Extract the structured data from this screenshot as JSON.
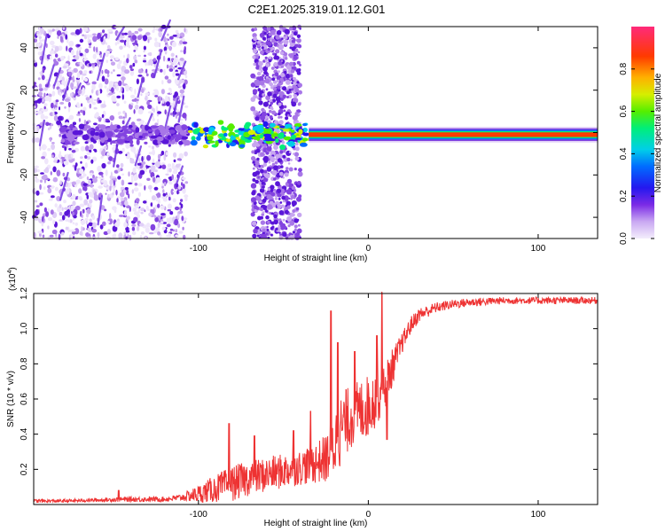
{
  "title": "C2E1.2025.319.01.12.G01",
  "colors": {
    "background": "#ffffff",
    "axis": "#000000",
    "snr_line": "#ee3333"
  },
  "chart_data": [
    {
      "type": "heatmap",
      "name": "spectrogram",
      "xlabel": "Height of straight line (km)",
      "ylabel": "Frequency (Hz)",
      "xlim": [
        -197,
        135
      ],
      "ylim": [
        -50,
        50
      ],
      "xticks": [
        -100,
        0,
        100
      ],
      "xtick_labels": [
        "-100",
        "0",
        "100"
      ],
      "yticks": [
        -40,
        -20,
        0,
        20,
        40
      ],
      "ytick_labels": [
        "-40",
        "-20",
        "0",
        "20",
        "40"
      ],
      "colorbar": {
        "label": "Normalized spectral amplitude",
        "range": [
          0,
          1
        ],
        "ticks": [
          0.0,
          0.2,
          0.4,
          0.6,
          0.8
        ],
        "tick_labels": [
          "0.0",
          "0.2",
          "0.4",
          "0.6",
          "0.8"
        ]
      },
      "features": [
        {
          "description": "scattered noise",
          "x_range": [
            -197,
            -107
          ],
          "freq_range": [
            -50,
            50
          ]
        },
        {
          "description": "noise band",
          "x_range": [
            -68,
            -40
          ],
          "freq_range": [
            -50,
            50
          ]
        },
        {
          "description": "carrier line",
          "x_range": [
            -197,
            135
          ],
          "freq_center": -1,
          "strength": "strong above -35 km"
        }
      ]
    },
    {
      "type": "line",
      "name": "snr",
      "xlabel": "Height of straight line (km)",
      "ylabel": "SNR (10 * v/v)",
      "y_multiplier": "(x10^4)",
      "xlim": [
        -197,
        135
      ],
      "ylim": [
        0,
        1.2
      ],
      "xticks": [
        -100,
        0,
        100
      ],
      "xtick_labels": [
        "-100",
        "0",
        "100"
      ],
      "yticks": [
        0.2,
        0.4,
        0.6,
        0.8,
        1.0,
        1.2
      ],
      "ytick_labels": [
        "0.2",
        "0.4",
        "0.6",
        "0.8",
        "1.0",
        "1.2"
      ],
      "series": [
        {
          "name": "SNR",
          "x": [
            -197,
            -180,
            -160,
            -140,
            -120,
            -110,
            -100,
            -90,
            -80,
            -70,
            -60,
            -50,
            -40,
            -30,
            -25,
            -20,
            -15,
            -10,
            -5,
            0,
            5,
            10,
            15,
            20,
            25,
            30,
            40,
            50,
            60,
            80,
            100,
            120,
            135
          ],
          "y": [
            0.02,
            0.02,
            0.025,
            0.03,
            0.03,
            0.04,
            0.06,
            0.09,
            0.12,
            0.15,
            0.17,
            0.19,
            0.21,
            0.24,
            0.26,
            0.34,
            0.45,
            0.5,
            0.53,
            0.56,
            0.61,
            0.68,
            0.8,
            0.92,
            1.02,
            1.08,
            1.12,
            1.14,
            1.15,
            1.16,
            1.16,
            1.16,
            1.16
          ],
          "noise_amp": [
            0.01,
            0.01,
            0.01,
            0.015,
            0.015,
            0.02,
            0.05,
            0.08,
            0.1,
            0.1,
            0.1,
            0.1,
            0.1,
            0.12,
            0.14,
            0.2,
            0.2,
            0.18,
            0.18,
            0.18,
            0.16,
            0.14,
            0.1,
            0.06,
            0.05,
            0.04,
            0.03,
            0.025,
            0.025,
            0.02,
            0.02,
            0.02,
            0.02
          ],
          "peaks": [
            {
              "x": -147,
              "y": 0.08
            },
            {
              "x": -82,
              "y": 0.46
            },
            {
              "x": -67,
              "y": 0.39
            },
            {
              "x": -44,
              "y": 0.42
            },
            {
              "x": -34,
              "y": 0.53
            },
            {
              "x": -22,
              "y": 1.1
            },
            {
              "x": -18,
              "y": 0.92
            },
            {
              "x": -8,
              "y": 0.87
            },
            {
              "x": 5,
              "y": 0.96
            },
            {
              "x": 8,
              "y": 1.21
            },
            {
              "x": 11,
              "y": 0.37
            }
          ]
        }
      ]
    }
  ]
}
